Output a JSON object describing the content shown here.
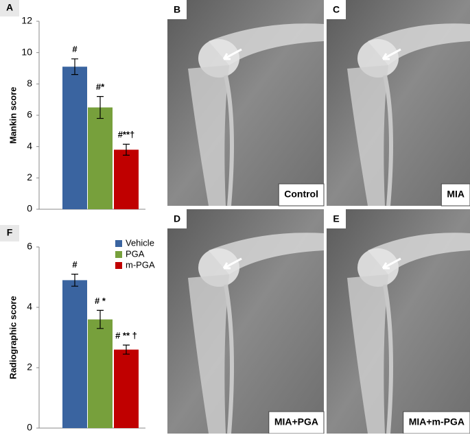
{
  "chart_data": [
    {
      "type": "bar",
      "panel": "A",
      "ylabel": "Mankin score",
      "values": [
        9.1,
        6.5,
        3.8
      ],
      "errors": [
        0.5,
        0.7,
        0.35
      ],
      "colors": [
        "#3a64a0",
        "#77a03c",
        "#c00000"
      ],
      "annotations": [
        "#",
        "#*",
        "#**†"
      ],
      "ylim": [
        0,
        12
      ],
      "yticks": [
        0,
        2,
        4,
        6,
        8,
        10,
        12
      ]
    },
    {
      "type": "bar",
      "panel": "F",
      "ylabel": "Radiographic score",
      "values": [
        4.9,
        3.6,
        2.6
      ],
      "errors": [
        0.2,
        0.3,
        0.15
      ],
      "colors": [
        "#3a64a0",
        "#77a03c",
        "#c00000"
      ],
      "annotations": [
        "#",
        "# *",
        "# ** †"
      ],
      "legend": [
        "Vehicle",
        "PGA",
        "m-PGA"
      ],
      "ylim": [
        0,
        6
      ],
      "yticks": [
        0,
        2,
        4,
        6
      ]
    }
  ],
  "panels": [
    {
      "label": "B",
      "caption": "Control"
    },
    {
      "label": "C",
      "caption": "MIA"
    },
    {
      "label": "D",
      "caption": "MIA+PGA"
    },
    {
      "label": "E",
      "caption": "MIA+m-PGA"
    }
  ]
}
